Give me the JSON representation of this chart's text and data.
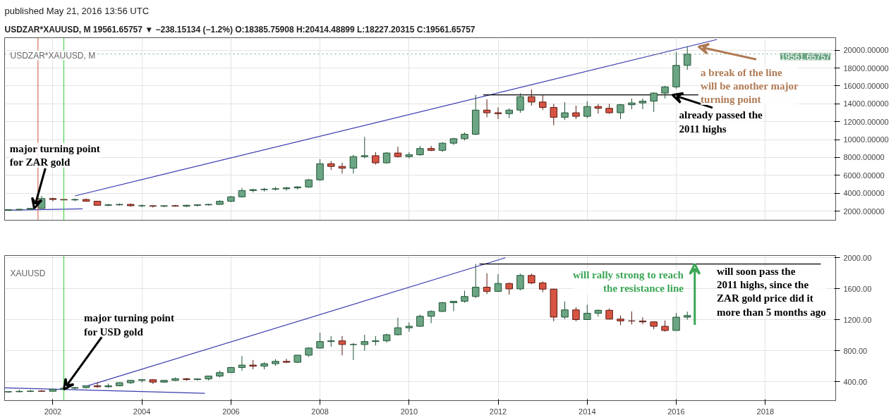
{
  "chart_data": [
    {
      "type": "candlestick",
      "title": "published May 21, 2016 13:56 UTC",
      "subtitle": "USDZAR*XAUUSD, M 19561.65757 ▼ −238.15134 (−1.2%) O:18385.75908 H:20414.48899 L:18227.20315 C:19561.65757",
      "annotations": [
        "USDZAR*XAUUSD, M",
        {
          "text": "major turning point\nfor ZAR gold",
          "x": "2001-08",
          "y": 2300
        },
        {
          "text": "already passed the\n2011 highs",
          "x": "2015-12",
          "y": 15000
        },
        {
          "text": "a break of the line\nwill be another major\nturning point",
          "x": "2016-07",
          "y": 20400
        }
      ],
      "x": [
        "2001-01",
        "2001-04",
        "2001-07",
        "2001-10",
        "2002-01",
        "2002-04",
        "2002-07",
        "2002-10",
        "2003-01",
        "2003-04",
        "2003-07",
        "2003-10",
        "2004-01",
        "2004-04",
        "2004-07",
        "2004-10",
        "2005-01",
        "2005-04",
        "2005-07",
        "2005-10",
        "2006-01",
        "2006-04",
        "2006-07",
        "2006-10",
        "2007-01",
        "2007-04",
        "2007-07",
        "2007-10",
        "2008-01",
        "2008-04",
        "2008-07",
        "2008-10",
        "2009-01",
        "2009-04",
        "2009-07",
        "2009-10",
        "2010-01",
        "2010-04",
        "2010-07",
        "2010-10",
        "2011-01",
        "2011-04",
        "2011-07",
        "2011-10",
        "2012-01",
        "2012-04",
        "2012-07",
        "2012-10",
        "2013-01",
        "2013-04",
        "2013-07",
        "2013-10",
        "2014-01",
        "2014-04",
        "2014-07",
        "2014-10",
        "2015-01",
        "2015-04",
        "2015-07",
        "2015-10",
        "2016-01",
        "2016-04"
      ],
      "ohlc": [
        [
          2100,
          2200,
          2050,
          2150
        ],
        [
          2150,
          2250,
          2100,
          2200
        ],
        [
          2200,
          2350,
          2150,
          2300
        ],
        [
          2300,
          3700,
          2250,
          3400
        ],
        [
          3400,
          3500,
          3100,
          3300
        ],
        [
          3300,
          3450,
          3150,
          3250
        ],
        [
          3250,
          3400,
          3100,
          3300
        ],
        [
          3300,
          3400,
          3050,
          3100
        ],
        [
          3100,
          3150,
          2600,
          2650
        ],
        [
          2650,
          2800,
          2550,
          2700
        ],
        [
          2700,
          2850,
          2600,
          2750
        ],
        [
          2750,
          2850,
          2500,
          2600
        ],
        [
          2600,
          2750,
          2450,
          2600
        ],
        [
          2600,
          2650,
          2400,
          2550
        ],
        [
          2550,
          2650,
          2450,
          2600
        ],
        [
          2600,
          2700,
          2500,
          2550
        ],
        [
          2550,
          2700,
          2450,
          2650
        ],
        [
          2650,
          2750,
          2500,
          2700
        ],
        [
          2700,
          2800,
          2600,
          2750
        ],
        [
          2750,
          3200,
          2700,
          3100
        ],
        [
          3100,
          3700,
          3000,
          3600
        ],
        [
          3600,
          4600,
          3500,
          4300
        ],
        [
          4300,
          4500,
          4100,
          4400
        ],
        [
          4400,
          4600,
          4200,
          4450
        ],
        [
          4450,
          4700,
          4300,
          4500
        ],
        [
          4500,
          4700,
          4300,
          4600
        ],
        [
          4600,
          4800,
          4400,
          4700
        ],
        [
          4700,
          5600,
          4600,
          5500
        ],
        [
          5500,
          7800,
          5400,
          7300
        ],
        [
          7300,
          7600,
          6600,
          7000
        ],
        [
          7000,
          7400,
          6200,
          6800
        ],
        [
          6800,
          8300,
          6200,
          8100
        ],
        [
          8100,
          10300,
          7900,
          8200
        ],
        [
          8200,
          8600,
          7200,
          7400
        ],
        [
          7400,
          8600,
          7300,
          8500
        ],
        [
          8500,
          9200,
          8000,
          8100
        ],
        [
          8100,
          8600,
          7900,
          8300
        ],
        [
          8300,
          9300,
          8200,
          9000
        ],
        [
          9000,
          9300,
          8700,
          8800
        ],
        [
          8800,
          9700,
          8600,
          9600
        ],
        [
          9600,
          10200,
          9400,
          10100
        ],
        [
          10100,
          10800,
          9900,
          10600
        ],
        [
          10600,
          15000,
          10500,
          13300
        ],
        [
          13300,
          14500,
          12500,
          13000
        ],
        [
          13000,
          13600,
          12300,
          12900
        ],
        [
          12900,
          13500,
          12400,
          13300
        ],
        [
          13300,
          15200,
          13000,
          14800
        ],
        [
          14800,
          15600,
          13800,
          14200
        ],
        [
          14200,
          15000,
          13300,
          13600
        ],
        [
          13600,
          14000,
          11600,
          12500
        ],
        [
          12500,
          14200,
          12200,
          13000
        ],
        [
          13000,
          13800,
          12300,
          12600
        ],
        [
          12600,
          14300,
          12400,
          13700
        ],
        [
          13700,
          14000,
          12900,
          13500
        ],
        [
          13500,
          14000,
          12900,
          13000
        ],
        [
          13000,
          14000,
          12300,
          13900
        ],
        [
          13900,
          14600,
          13400,
          14100
        ],
        [
          14100,
          14600,
          13400,
          14300
        ],
        [
          14300,
          15300,
          13100,
          15200
        ],
        [
          15200,
          16000,
          14600,
          15900
        ],
        [
          15900,
          19800,
          15700,
          18300
        ],
        [
          18300,
          20414.5,
          17800,
          19561.7
        ]
      ],
      "series": [
        {
          "type": "line",
          "color": "#3b3bb0",
          "x": [
            "2002-07",
            "2016-12"
          ],
          "values": [
            3700,
            21200
          ]
        },
        {
          "type": "line",
          "color": "#3b3bb0",
          "x": [
            "2000-12",
            "2002-09"
          ],
          "values": [
            2100,
            2250
          ]
        },
        {
          "type": "line",
          "color": "#000000",
          "x": [
            "2011-09",
            "2016-07"
          ],
          "values": [
            15000,
            15000
          ]
        }
      ],
      "ref_lines": [
        {
          "axis": "y",
          "value": 19561.65757,
          "label": "19561.65757",
          "color": "#6ba583",
          "line_style": "dotted"
        },
        {
          "axis": "x",
          "value": "2001-09",
          "color": "#d05040"
        },
        {
          "axis": "x",
          "value": "2002-04",
          "color": "#33cc33"
        }
      ],
      "xlim": [
        "2000-12",
        "2019-08"
      ],
      "xticks": [
        "2002",
        "2004",
        "2006",
        "2008",
        "2010",
        "2012",
        "2014",
        "2016",
        "2018"
      ],
      "ylim": [
        980,
        21400
      ],
      "yticks": [
        {
          "value": 2000,
          "label": "2000.00000"
        },
        {
          "value": 4000,
          "label": "4000.00000"
        },
        {
          "value": 6000,
          "label": "6000.00000"
        },
        {
          "value": 8000,
          "label": "8000.00000"
        },
        {
          "value": 10000,
          "label": "10000.00000"
        },
        {
          "value": 12000,
          "label": "12000.00000"
        },
        {
          "value": 14000,
          "label": "14000.00000"
        },
        {
          "value": 16000,
          "label": "16000.00000"
        },
        {
          "value": 18000,
          "label": "18000.00000"
        },
        {
          "value": 20000,
          "label": "20000.00000"
        }
      ],
      "tick_labels": "y",
      "grid": true
    },
    {
      "type": "candlestick",
      "annotations": [
        "XAUUSD",
        {
          "text": "major turning point\nfor USD gold",
          "x": "2002-04",
          "y": 300
        },
        "will soon pass the\n2011 highs, since the\nZAR gold price did it\nmore than 5 months ago",
        {
          "text": "will rally strong to reach\nthe resistance line",
          "x": "2016-06",
          "y": 1920
        }
      ],
      "x": [
        "2001-01",
        "2001-04",
        "2001-07",
        "2001-10",
        "2002-01",
        "2002-04",
        "2002-07",
        "2002-10",
        "2003-01",
        "2003-04",
        "2003-07",
        "2003-10",
        "2004-01",
        "2004-04",
        "2004-07",
        "2004-10",
        "2005-01",
        "2005-04",
        "2005-07",
        "2005-10",
        "2006-01",
        "2006-04",
        "2006-07",
        "2006-10",
        "2007-01",
        "2007-04",
        "2007-07",
        "2007-10",
        "2008-01",
        "2008-04",
        "2008-07",
        "2008-10",
        "2009-01",
        "2009-04",
        "2009-07",
        "2009-10",
        "2010-01",
        "2010-04",
        "2010-07",
        "2010-10",
        "2011-01",
        "2011-04",
        "2011-07",
        "2011-10",
        "2012-01",
        "2012-04",
        "2012-07",
        "2012-10",
        "2013-01",
        "2013-04",
        "2013-07",
        "2013-10",
        "2014-01",
        "2014-04",
        "2014-07",
        "2014-10",
        "2015-01",
        "2015-04",
        "2015-07",
        "2015-10",
        "2016-01",
        "2016-04"
      ],
      "ohlc": [
        [
          268,
          275,
          255,
          270
        ],
        [
          270,
          295,
          262,
          275
        ],
        [
          275,
          293,
          265,
          278
        ],
        [
          278,
          290,
          270,
          276
        ],
        [
          276,
          305,
          276,
          302
        ],
        [
          302,
          330,
          300,
          315
        ],
        [
          315,
          330,
          300,
          323
        ],
        [
          323,
          350,
          310,
          347
        ],
        [
          347,
          390,
          320,
          334
        ],
        [
          334,
          375,
          320,
          346
        ],
        [
          346,
          390,
          340,
          386
        ],
        [
          386,
          420,
          370,
          416
        ],
        [
          416,
          430,
          390,
          425
        ],
        [
          425,
          430,
          370,
          394
        ],
        [
          394,
          420,
          385,
          416
        ],
        [
          416,
          455,
          410,
          437
        ],
        [
          437,
          445,
          410,
          428
        ],
        [
          428,
          440,
          415,
          435
        ],
        [
          435,
          475,
          415,
          472
        ],
        [
          472,
          540,
          455,
          517
        ],
        [
          517,
          590,
          515,
          583
        ],
        [
          583,
          730,
          540,
          614
        ],
        [
          614,
          680,
          560,
          600
        ],
        [
          600,
          650,
          560,
          632
        ],
        [
          632,
          690,
          605,
          662
        ],
        [
          662,
          695,
          640,
          650
        ],
        [
          650,
          745,
          640,
          742
        ],
        [
          742,
          845,
          720,
          834
        ],
        [
          834,
          1033,
          830,
          918
        ],
        [
          918,
          990,
          850,
          927
        ],
        [
          927,
          990,
          740,
          880
        ],
        [
          880,
          900,
          680,
          880
        ],
        [
          880,
          1005,
          800,
          918
        ],
        [
          918,
          990,
          865,
          927
        ],
        [
          927,
          1020,
          905,
          1006
        ],
        [
          1006,
          1225,
          1000,
          1096
        ],
        [
          1096,
          1165,
          1045,
          1115
        ],
        [
          1115,
          1265,
          1110,
          1244
        ],
        [
          1244,
          1320,
          1155,
          1307
        ],
        [
          1307,
          1430,
          1300,
          1420
        ],
        [
          1420,
          1440,
          1310,
          1438
        ],
        [
          1438,
          1575,
          1420,
          1500
        ],
        [
          1500,
          1920,
          1480,
          1620
        ],
        [
          1620,
          1800,
          1530,
          1565
        ],
        [
          1565,
          1790,
          1560,
          1668
        ],
        [
          1668,
          1680,
          1525,
          1598
        ],
        [
          1598,
          1795,
          1580,
          1772
        ],
        [
          1772,
          1796,
          1660,
          1675
        ],
        [
          1675,
          1695,
          1555,
          1595
        ],
        [
          1595,
          1600,
          1180,
          1234
        ],
        [
          1234,
          1435,
          1208,
          1327
        ],
        [
          1327,
          1361,
          1180,
          1202
        ],
        [
          1202,
          1392,
          1200,
          1283
        ],
        [
          1283,
          1332,
          1240,
          1322
        ],
        [
          1322,
          1345,
          1205,
          1208
        ],
        [
          1208,
          1255,
          1130,
          1185
        ],
        [
          1185,
          1308,
          1140,
          1183
        ],
        [
          1183,
          1232,
          1142,
          1172
        ],
        [
          1172,
          1180,
          1077,
          1115
        ],
        [
          1115,
          1191,
          1046,
          1061
        ],
        [
          1061,
          1287,
          1061,
          1233
        ],
        [
          1233,
          1304,
          1200,
          1253
        ]
      ],
      "series": [
        {
          "type": "line",
          "color": "#3b3bb0",
          "x": [
            "2002-10",
            "2012-03"
          ],
          "values": [
            340,
            2000
          ]
        },
        {
          "type": "line",
          "color": "#3b3bb0",
          "x": [
            "2000-12",
            "2005-06"
          ],
          "values": [
            320,
            250
          ]
        },
        {
          "type": "line",
          "color": "#000000",
          "x": [
            "2011-08",
            "2019-04"
          ],
          "values": [
            1920,
            1920
          ]
        }
      ],
      "ref_lines": [
        {
          "axis": "x",
          "value": "2002-04",
          "color": "#33cc33"
        }
      ],
      "xlim": [
        "2000-12",
        "2019-08"
      ],
      "xticks": [
        "2002",
        "2004",
        "2006",
        "2008",
        "2010",
        "2012",
        "2014",
        "2016",
        "2018"
      ],
      "ylim": [
        155,
        2030
      ],
      "yticks": [
        {
          "value": 400,
          "label": "400.00"
        },
        {
          "value": 800,
          "label": "800.00"
        },
        {
          "value": 1200,
          "label": "1200.00"
        },
        {
          "value": 1600,
          "label": "1600.00"
        },
        {
          "value": 2000,
          "label": "2000.00"
        }
      ],
      "grid": true
    }
  ]
}
